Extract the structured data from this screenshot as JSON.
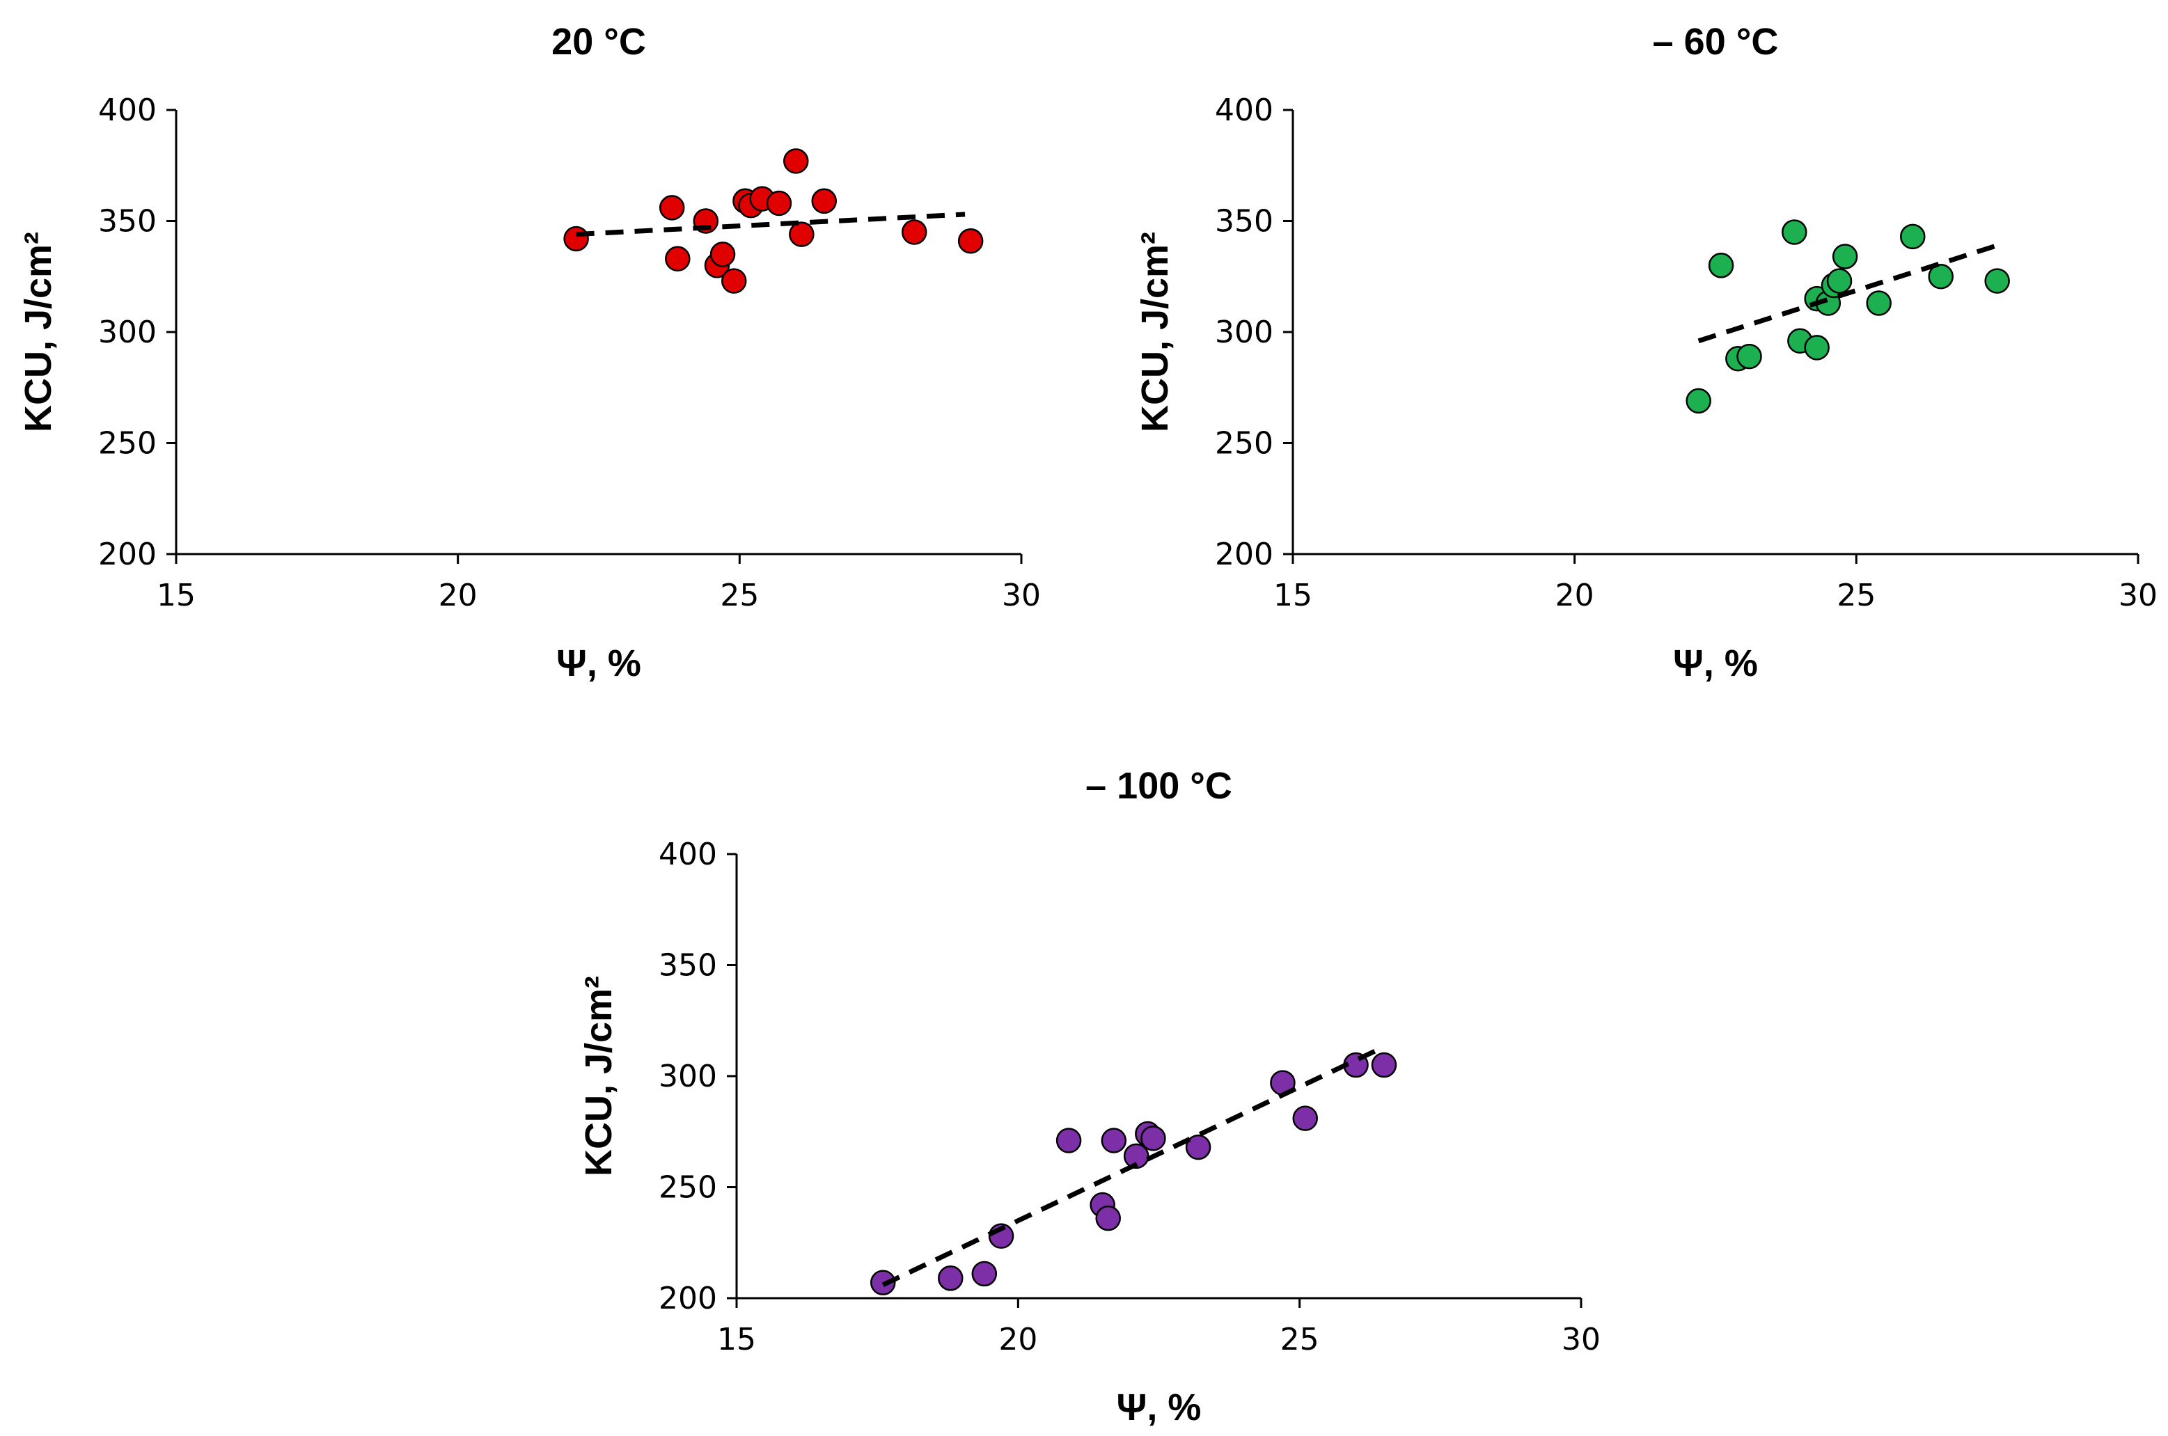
{
  "chart_data": [
    {
      "type": "scatter",
      "title": "20 °C",
      "xlabel": "Ψ, %",
      "ylabel": "KCU, J/cm²",
      "xlim": [
        15,
        30
      ],
      "ylim": [
        200,
        400
      ],
      "xticks": [
        "15",
        "20",
        "25",
        "30"
      ],
      "yticks": [
        "200",
        "250",
        "300",
        "350",
        "400"
      ],
      "color": "#e00000",
      "points": [
        {
          "x": 22.1,
          "y": 342
        },
        {
          "x": 23.8,
          "y": 356
        },
        {
          "x": 23.9,
          "y": 333
        },
        {
          "x": 24.4,
          "y": 350
        },
        {
          "x": 24.6,
          "y": 330
        },
        {
          "x": 24.7,
          "y": 335
        },
        {
          "x": 24.9,
          "y": 323
        },
        {
          "x": 25.1,
          "y": 359
        },
        {
          "x": 25.2,
          "y": 357
        },
        {
          "x": 25.4,
          "y": 360
        },
        {
          "x": 25.7,
          "y": 358
        },
        {
          "x": 26.0,
          "y": 377
        },
        {
          "x": 26.1,
          "y": 344
        },
        {
          "x": 26.5,
          "y": 359
        },
        {
          "x": 28.1,
          "y": 345
        },
        {
          "x": 29.1,
          "y": 341
        }
      ],
      "trendline": {
        "x": [
          22.1,
          29.0
        ],
        "y": [
          344,
          353
        ]
      }
    },
    {
      "type": "scatter",
      "title": "– 60 °C",
      "xlabel": "Ψ, %",
      "ylabel": "KCU, J/cm²",
      "xlim": [
        15,
        30
      ],
      "ylim": [
        200,
        400
      ],
      "xticks": [
        "15",
        "20",
        "25",
        "30"
      ],
      "yticks": [
        "200",
        "250",
        "300",
        "350",
        "400"
      ],
      "color": "#1db050",
      "points": [
        {
          "x": 22.2,
          "y": 269
        },
        {
          "x": 22.6,
          "y": 330
        },
        {
          "x": 22.9,
          "y": 288
        },
        {
          "x": 23.1,
          "y": 289
        },
        {
          "x": 23.9,
          "y": 345
        },
        {
          "x": 24.0,
          "y": 296
        },
        {
          "x": 24.3,
          "y": 315
        },
        {
          "x": 24.3,
          "y": 293
        },
        {
          "x": 24.5,
          "y": 313
        },
        {
          "x": 24.6,
          "y": 321
        },
        {
          "x": 24.7,
          "y": 323
        },
        {
          "x": 24.8,
          "y": 334
        },
        {
          "x": 25.4,
          "y": 313
        },
        {
          "x": 26.0,
          "y": 343
        },
        {
          "x": 26.5,
          "y": 325
        },
        {
          "x": 27.5,
          "y": 323
        }
      ],
      "trendline": {
        "x": [
          22.2,
          27.5
        ],
        "y": [
          296,
          339
        ]
      }
    },
    {
      "type": "scatter",
      "title": "– 100 °C",
      "xlabel": "Ψ, %",
      "ylabel": "KCU, J/cm²",
      "xlim": [
        15,
        30
      ],
      "ylim": [
        200,
        400
      ],
      "xticks": [
        "15",
        "20",
        "25",
        "30"
      ],
      "yticks": [
        "200",
        "250",
        "300",
        "350",
        "400"
      ],
      "color": "#7d2fa8",
      "points": [
        {
          "x": 17.6,
          "y": 207
        },
        {
          "x": 18.8,
          "y": 209
        },
        {
          "x": 19.4,
          "y": 211
        },
        {
          "x": 19.7,
          "y": 228
        },
        {
          "x": 20.9,
          "y": 271
        },
        {
          "x": 21.5,
          "y": 242
        },
        {
          "x": 21.6,
          "y": 236
        },
        {
          "x": 21.7,
          "y": 271
        },
        {
          "x": 22.1,
          "y": 264
        },
        {
          "x": 22.3,
          "y": 274
        },
        {
          "x": 22.4,
          "y": 272
        },
        {
          "x": 23.2,
          "y": 268
        },
        {
          "x": 24.7,
          "y": 297
        },
        {
          "x": 25.1,
          "y": 281
        },
        {
          "x": 26.0,
          "y": 305
        },
        {
          "x": 26.5,
          "y": 305
        }
      ],
      "trendline": {
        "x": [
          17.6,
          26.4
        ],
        "y": [
          206,
          312
        ]
      }
    }
  ]
}
